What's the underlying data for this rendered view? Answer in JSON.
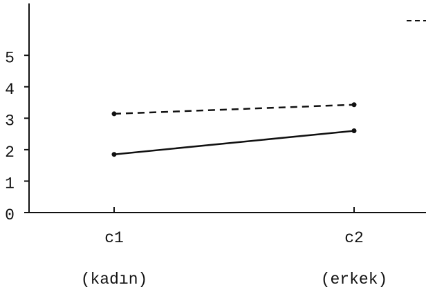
{
  "chart_data": {
    "type": "line",
    "categories": [
      "c1",
      "c2"
    ],
    "category_notes": [
      "(kadın)",
      "(erkek)"
    ],
    "series": [
      {
        "color": "#111111",
        "dash": true,
        "values": [
          3.14,
          3.43
        ]
      },
      {
        "color": "#111111",
        "dash": false,
        "values": [
          1.85,
          2.6
        ]
      }
    ],
    "ylim": [
      0,
      6.65
    ],
    "yticks": [
      0,
      1,
      2,
      3,
      4,
      5
    ],
    "grid": false
  }
}
